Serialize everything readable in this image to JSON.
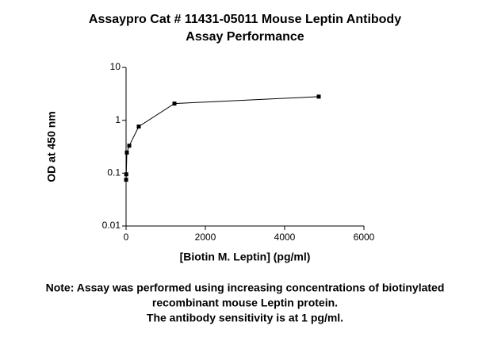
{
  "chart_data": {
    "type": "line",
    "title": [
      "Assaypro Cat # 11431-05011 Mouse Leptin Antibody",
      "Assay Performance"
    ],
    "x_label": "[Biotin M. Leptin] (pg/ml)",
    "y_label": "OD at 450 nm",
    "note": [
      "Note: Assay was performed using increasing concentrations of biotinylated",
      "recombinant mouse Leptin protein.",
      "The antibody sensitivity is at 1 pg/ml."
    ],
    "x": [
      1,
      5,
      20,
      80,
      320,
      1220,
      4860
    ],
    "series": [
      {
        "color": "#000000",
        "values": [
          0.075,
          0.095,
          0.245,
          0.33,
          0.76,
          2.07,
          2.8
        ]
      }
    ],
    "xlim": [
      0,
      6000
    ],
    "xticks": [
      0,
      2000,
      4000,
      6000
    ],
    "ylim": [
      0.01,
      10
    ],
    "yticks": [
      0.01,
      0.1,
      1,
      10
    ],
    "y_scale": "log"
  }
}
